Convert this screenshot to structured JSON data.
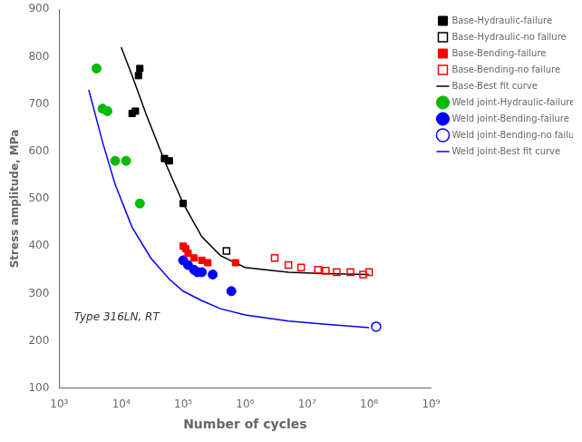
{
  "chart_data": {
    "type": "scatter",
    "xlabel": "Number of cycles",
    "ylabel": "Stress amplitude, MPa",
    "annotation": "Type 316LN, RT",
    "log": "x",
    "grid": false,
    "legend": "upper right",
    "xlim": [
      1000,
      1000000000
    ],
    "xticks": [
      {
        "value": 1000,
        "label": "10³"
      },
      {
        "value": 10000,
        "label": "10⁴"
      },
      {
        "value": 100000,
        "label": "10⁵"
      },
      {
        "value": 1000000,
        "label": "10⁶"
      },
      {
        "value": 10000000,
        "label": "10⁷"
      },
      {
        "value": 100000000,
        "label": "10⁸"
      },
      {
        "value": 1000000000,
        "label": "10⁹"
      }
    ],
    "ylim": [
      100,
      900
    ],
    "yticks": [
      100,
      200,
      300,
      400,
      500,
      600,
      700,
      800,
      900
    ],
    "series": [
      {
        "name": "Base-Hydraulic-failure",
        "type": "scatter",
        "marker": "square",
        "color": "#000000",
        "x": [
          20000,
          19000,
          15000,
          17000,
          50000,
          60000,
          100000
        ],
        "values": [
          775,
          760,
          680,
          685,
          585,
          580,
          490
        ]
      },
      {
        "name": "Base-Hydraulic-no failure",
        "type": "scatter",
        "marker": "square-open",
        "color": "#000000",
        "x": [
          500000
        ],
        "values": [
          390
        ]
      },
      {
        "name": "Base-Bending-failure",
        "type": "scatter",
        "marker": "square",
        "color": "#ff0000",
        "x": [
          100000,
          110000,
          120000,
          150000,
          200000,
          250000,
          700000
        ],
        "values": [
          400,
          395,
          385,
          375,
          370,
          365,
          365
        ]
      },
      {
        "name": "Base-Bending-no failure",
        "type": "scatter",
        "marker": "square-open",
        "color": "#ff0000",
        "x": [
          3000000,
          5000000,
          8000000,
          15000000,
          20000000,
          30000000,
          50000000,
          80000000,
          100000000
        ],
        "values": [
          375,
          360,
          355,
          350,
          348,
          345,
          345,
          340,
          345
        ]
      },
      {
        "name": "Base-Best fit curve",
        "type": "line",
        "line_style": "solid",
        "color": "#000000",
        "x": [
          10000,
          15000,
          25000,
          50000,
          100000,
          200000,
          400000,
          1000000,
          5000000,
          20000000,
          100000000
        ],
        "values": [
          820,
          760,
          680,
          580,
          490,
          420,
          380,
          355,
          345,
          342,
          340
        ]
      },
      {
        "name": "Weld joint-Hydraulic-failure",
        "type": "scatter",
        "marker": "circle",
        "color": "#00bb00",
        "x": [
          4000,
          5000,
          6000,
          8000,
          12000,
          20000
        ],
        "values": [
          775,
          690,
          685,
          580,
          580,
          490
        ]
      },
      {
        "name": "Weld joint-Bending-failure",
        "type": "scatter",
        "marker": "circle",
        "color": "#0000ff",
        "x": [
          100000,
          120000,
          150000,
          170000,
          200000,
          300000,
          600000
        ],
        "values": [
          370,
          360,
          350,
          345,
          345,
          340,
          305
        ]
      },
      {
        "name": "Weld joint-Bending-no failure",
        "type": "scatter",
        "marker": "circle-open",
        "color": "#0000ff",
        "x": [
          130000000
        ],
        "values": [
          230
        ]
      },
      {
        "name": "Weld joint-Best fit curve",
        "type": "line",
        "line_style": "solid",
        "color": "#0000ff",
        "x": [
          3000,
          5000,
          8000,
          15000,
          30000,
          60000,
          100000,
          200000,
          400000,
          1000000,
          5000000,
          20000000,
          100000000
        ],
        "values": [
          730,
          620,
          530,
          440,
          375,
          330,
          305,
          285,
          268,
          255,
          242,
          235,
          228
        ]
      }
    ]
  }
}
